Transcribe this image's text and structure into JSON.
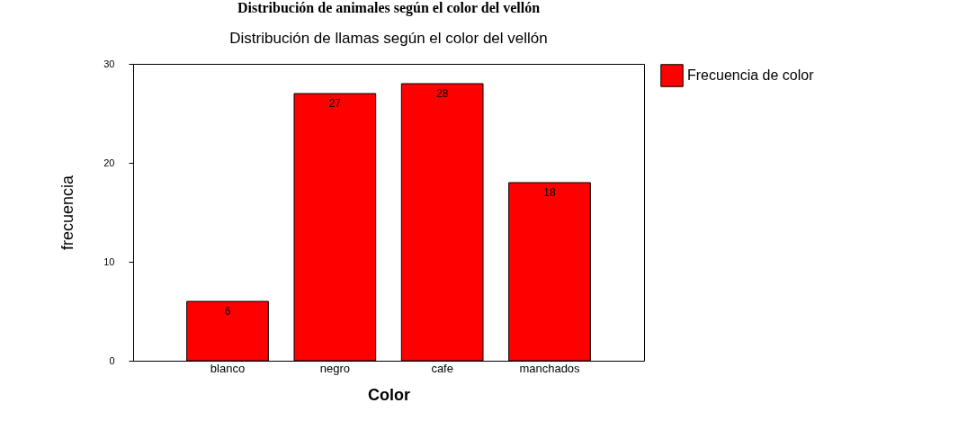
{
  "chart_data": {
    "type": "bar",
    "title": "Distribución de animales según el color del vellón",
    "subtitle": "Distribución de llamas según el color del vellón",
    "xlabel": "Color",
    "ylabel": "frecuencia",
    "categories": [
      "blanco",
      "negro",
      "cafe",
      "manchados"
    ],
    "series": [
      {
        "name": "Frecuencia de color",
        "color": "#ff0000",
        "values": [
          6,
          27,
          28,
          18
        ]
      }
    ],
    "ylim": [
      0,
      30
    ],
    "yticks": [
      0,
      10,
      20,
      30
    ],
    "grid": false,
    "legend": "right",
    "data_labels": true
  }
}
